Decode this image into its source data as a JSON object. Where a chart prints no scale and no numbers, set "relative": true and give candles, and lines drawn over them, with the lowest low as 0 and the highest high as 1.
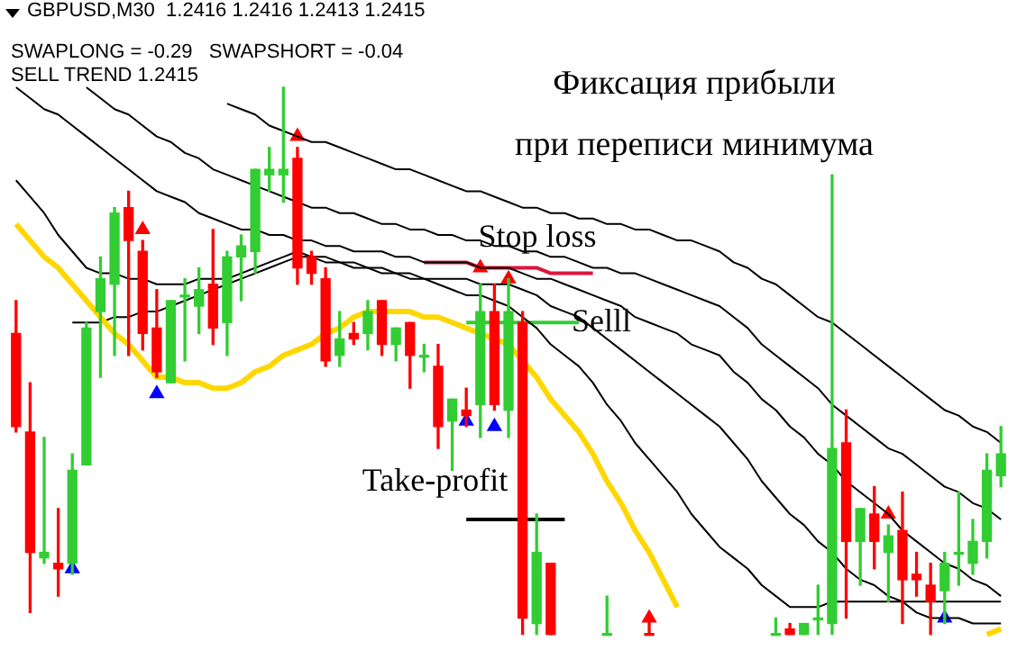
{
  "chart_data": {
    "type": "candlestick",
    "title": "Фиксация прибыли",
    "subtitle": "при переписи минимума",
    "annotations": [
      "GBPUSD,M30  1.2416 1.2416 1.2413 1.2415",
      "SWAPLONG = -0.29   SWAPSHORT = -0.04",
      "SELL TREND 1.2415"
    ],
    "relative": true,
    "tick_labels": false,
    "legend": false,
    "categories": [
      null,
      null,
      null,
      null,
      null,
      null,
      null,
      null,
      null,
      null,
      null,
      null,
      null,
      null,
      null,
      null,
      null,
      null,
      null,
      null,
      null,
      null,
      null,
      null,
      null,
      null,
      null,
      null,
      null,
      null,
      null,
      null,
      null,
      null,
      null,
      null,
      null,
      null,
      null,
      null,
      null,
      null,
      null,
      null,
      null,
      null,
      null,
      null,
      null,
      null,
      null,
      null,
      null,
      null,
      null,
      null,
      null,
      null,
      null,
      null,
      null,
      null,
      null,
      null,
      null,
      null,
      null,
      null,
      null,
      null,
      null
    ],
    "ohlc": [
      [
        0.55,
        0.61,
        0.37,
        0.38
      ],
      [
        0.37,
        0.46,
        0.04,
        0.15
      ],
      [
        0.14,
        0.36,
        0.13,
        0.15
      ],
      [
        0.13,
        0.23,
        0.07,
        0.12
      ],
      [
        0.13,
        0.33,
        0.11,
        0.3
      ],
      [
        0.31,
        0.57,
        0.31,
        0.56
      ],
      [
        0.59,
        0.69,
        0.47,
        0.65
      ],
      [
        0.64,
        0.78,
        0.51,
        0.77
      ],
      [
        0.78,
        0.81,
        0.51,
        0.72
      ],
      [
        0.7,
        0.72,
        0.52,
        0.55
      ],
      [
        0.56,
        0.63,
        0.47,
        0.48
      ],
      [
        0.46,
        0.61,
        0.46,
        0.61
      ],
      [
        0.62,
        0.65,
        0.5,
        0.62
      ],
      [
        0.6,
        0.67,
        0.55,
        0.63
      ],
      [
        0.64,
        0.74,
        0.53,
        0.56
      ],
      [
        0.57,
        0.7,
        0.51,
        0.69
      ],
      [
        0.69,
        0.73,
        0.61,
        0.71
      ],
      [
        0.7,
        0.85,
        0.66,
        0.85
      ],
      [
        0.84,
        0.89,
        0.81,
        0.85
      ],
      [
        0.84,
        1,
        0.79,
        0.85
      ],
      [
        0.87,
        0.89,
        0.64,
        0.67
      ],
      [
        0.69,
        0.7,
        0.64,
        0.66
      ],
      [
        0.65,
        0.67,
        0.49,
        0.5
      ],
      [
        0.51,
        0.59,
        0.49,
        0.54
      ],
      [
        0.55,
        0.57,
        0.53,
        0.54
      ],
      [
        0.55,
        0.61,
        0.52,
        0.59
      ],
      [
        0.61,
        0.61,
        0.51,
        0.53
      ],
      [
        0.53,
        0.56,
        0.5,
        0.56
      ],
      [
        0.57,
        0.57,
        0.45,
        0.51
      ],
      [
        0.51,
        0.53,
        0.48,
        0.51
      ],
      [
        0.49,
        0.53,
        0.34,
        0.38
      ],
      [
        0.39,
        0.43,
        0.3,
        0.43
      ],
      [
        0.41,
        0.45,
        0.38,
        0.4
      ],
      [
        0.42,
        0.64,
        0.36,
        0.59
      ],
      [
        0.59,
        0.64,
        0.41,
        0.42
      ],
      [
        0.41,
        0.65,
        0.36,
        0.59
      ],
      [
        0.57,
        0.59,
        0,
        0.03
      ],
      [
        0.02,
        0.22,
        0,
        0.15
      ],
      [
        0.13,
        0.13,
        0,
        0
      ],
      null,
      null,
      null,
      [
        0,
        0.07,
        0,
        0
      ],
      null,
      null,
      [
        0,
        0.04,
        0,
        0
      ],
      null,
      null,
      null,
      null,
      null,
      null,
      null,
      null,
      [
        0,
        0.03,
        0,
        0
      ],
      [
        0.01,
        0.02,
        0,
        0
      ],
      [
        0,
        0.02,
        0,
        0.02
      ],
      [
        0.03,
        0.09,
        0,
        0.03
      ],
      [
        0.02,
        0.84,
        0,
        0.34
      ],
      [
        0.35,
        0.41,
        0.03,
        0.17
      ],
      [
        0.17,
        0.23,
        0.09,
        0.23
      ],
      [
        0.22,
        0.27,
        0.12,
        0.17
      ],
      [
        0.15,
        0.2,
        0.06,
        0.18
      ],
      [
        0.19,
        0.26,
        0.02,
        0.1
      ],
      [
        0.11,
        0.15,
        0.07,
        0.1
      ],
      [
        0.09,
        0.13,
        0,
        0.06
      ],
      [
        0.08,
        0.15,
        0.02,
        0.13
      ],
      [
        0.15,
        0.26,
        0.09,
        0.15
      ],
      [
        0.13,
        0.21,
        0.11,
        0.17
      ],
      [
        0.17,
        0.33,
        0.14,
        0.3
      ],
      [
        0.29,
        0.38,
        0.27,
        0.33
      ]
    ],
    "colors": [
      "#ff0000",
      "#ff0000",
      "#32cd32",
      "#ff0000",
      "#32cd32",
      "#32cd32",
      "#32cd32",
      "#32cd32",
      "#ff0000",
      "#ff0000",
      "#ff0000",
      "#32cd32",
      "#32cd32",
      "#32cd32",
      "#ff0000",
      "#32cd32",
      "#32cd32",
      "#32cd32",
      "#32cd32",
      "#32cd32",
      "#ff0000",
      "#ff0000",
      "#ff0000",
      "#32cd32",
      "#ff0000",
      "#32cd32",
      "#ff0000",
      "#32cd32",
      "#ff0000",
      "#32cd32",
      "#ff0000",
      "#32cd32",
      "#ff0000",
      "#32cd32",
      "#ff0000",
      "#32cd32",
      "#ff0000",
      "#32cd32",
      "#ff0000",
      null,
      null,
      null,
      "#32cd32",
      null,
      null,
      "#ff0000",
      null,
      null,
      null,
      null,
      null,
      null,
      null,
      null,
      "#32cd32",
      "#ff0000",
      "#32cd32",
      "#32cd32",
      "#32cd32",
      "#ff0000",
      "#32cd32",
      "#ff0000",
      "#32cd32",
      "#ff0000",
      "#ff0000",
      "#ff0000",
      "#32cd32",
      "#32cd32",
      "#32cd32",
      "#32cd32",
      "#32cd32"
    ],
    "series": [
      {
        "type": "line",
        "color": "#ffd700",
        "values": [
          0.75,
          0.72,
          0.69,
          0.67,
          0.64,
          0.61,
          0.58,
          0.55,
          0.53,
          0.5,
          0.47,
          0.47,
          0.46,
          0.46,
          0.45,
          0.45,
          0.46,
          0.48,
          0.49,
          0.51,
          0.52,
          0.53,
          0.55,
          0.56,
          0.58,
          0.59,
          0.59,
          0.59,
          0.59,
          0.58,
          0.58,
          0.57,
          0.56,
          0.55,
          0.54,
          0.53,
          0.5,
          0.47,
          0.43,
          0.4,
          0.37,
          0.33,
          0.28,
          0.24,
          0.19,
          0.15,
          0.1,
          0.05,
          null,
          null,
          null,
          null,
          null,
          null,
          null,
          null,
          null,
          null,
          null,
          null,
          null,
          null,
          null,
          null,
          null,
          null,
          null,
          null,
          null,
          0,
          0.01
        ]
      },
      {
        "type": "line",
        "color": "#000000",
        "values": [
          null,
          null,
          null,
          null,
          null,
          null,
          null,
          null,
          null,
          null,
          null,
          null,
          null,
          null,
          null,
          0.97,
          0.96,
          0.95,
          0.93,
          0.92,
          0.91,
          0.9,
          0.9,
          0.89,
          0.88,
          0.87,
          0.86,
          0.85,
          0.85,
          0.84,
          0.83,
          0.82,
          0.81,
          0.81,
          0.8,
          0.79,
          0.78,
          0.78,
          0.77,
          0.77,
          0.76,
          0.76,
          0.75,
          0.75,
          0.74,
          0.74,
          0.73,
          0.72,
          0.72,
          0.71,
          0.7,
          0.68,
          0.67,
          0.65,
          0.64,
          0.62,
          0.6,
          0.58,
          0.57,
          0.55,
          0.53,
          0.51,
          0.49,
          0.47,
          0.45,
          0.43,
          0.41,
          0.4,
          0.38,
          0.37,
          0.35
        ]
      },
      {
        "type": "line",
        "color": "#000000",
        "values": [
          null,
          null,
          null,
          null,
          null,
          1,
          0.98,
          0.96,
          0.95,
          0.93,
          0.91,
          0.9,
          0.88,
          0.87,
          0.85,
          0.84,
          0.83,
          0.82,
          0.81,
          0.8,
          0.79,
          0.78,
          0.78,
          0.77,
          0.77,
          0.76,
          0.75,
          0.75,
          0.74,
          0.74,
          0.73,
          0.73,
          0.72,
          0.72,
          0.71,
          0.71,
          0.7,
          0.7,
          0.69,
          0.69,
          0.68,
          0.67,
          0.67,
          0.66,
          0.66,
          0.65,
          0.64,
          0.63,
          0.62,
          0.61,
          0.6,
          0.58,
          0.56,
          0.53,
          0.51,
          0.49,
          0.47,
          0.45,
          0.42,
          0.4,
          0.38,
          0.36,
          0.34,
          0.33,
          0.31,
          0.29,
          0.27,
          0.26,
          0.24,
          0.23,
          0.21
        ]
      },
      {
        "type": "line",
        "color": "#000000",
        "values": [
          1,
          0.98,
          0.96,
          0.95,
          0.93,
          0.91,
          0.89,
          0.87,
          0.85,
          0.83,
          0.81,
          0.8,
          0.79,
          0.77,
          0.76,
          0.75,
          0.74,
          0.74,
          0.73,
          0.73,
          0.72,
          0.72,
          0.71,
          0.71,
          0.7,
          0.7,
          0.7,
          0.69,
          0.69,
          0.68,
          0.68,
          0.68,
          0.68,
          0.67,
          0.67,
          0.67,
          0.66,
          0.65,
          0.65,
          0.64,
          0.63,
          0.62,
          0.61,
          0.6,
          0.58,
          0.57,
          0.56,
          0.55,
          0.53,
          0.52,
          0.51,
          0.48,
          0.46,
          0.43,
          0.41,
          0.38,
          0.36,
          0.33,
          0.31,
          0.28,
          0.26,
          0.24,
          0.22,
          0.19,
          0.17,
          0.15,
          0.13,
          0.12,
          0.1,
          0.09,
          0.07
        ]
      },
      {
        "type": "line",
        "color": "#000000",
        "values": [
          0.83,
          0.8,
          0.77,
          0.73,
          0.7,
          0.67,
          0.66,
          0.66,
          0.65,
          0.65,
          0.64,
          0.64,
          0.64,
          0.65,
          0.65,
          0.65,
          0.66,
          0.67,
          0.68,
          0.69,
          0.7,
          0.69,
          0.69,
          0.68,
          0.68,
          0.67,
          0.67,
          0.66,
          0.66,
          0.65,
          0.65,
          0.65,
          0.65,
          0.64,
          0.64,
          0.64,
          0.63,
          0.62,
          0.6,
          0.59,
          0.58,
          0.56,
          0.54,
          0.52,
          0.5,
          0.48,
          0.46,
          0.44,
          0.42,
          0.4,
          0.38,
          0.35,
          0.32,
          0.28,
          0.25,
          0.22,
          0.2,
          0.17,
          0.15,
          0.12,
          0.1,
          0.09,
          0.07,
          0.06,
          0.04,
          0.03,
          0.03,
          0.03,
          0.02,
          0.02,
          0.02
        ]
      },
      {
        "type": "line",
        "color": "#000000",
        "values": [
          null,
          null,
          null,
          null,
          0.57,
          0.57,
          0.57,
          0.58,
          0.58,
          0.59,
          0.59,
          0.6,
          0.61,
          0.62,
          0.63,
          0.64,
          0.65,
          0.66,
          0.67,
          0.68,
          0.69,
          0.69,
          0.68,
          0.68,
          0.67,
          0.67,
          0.66,
          0.66,
          0.65,
          0.65,
          0.64,
          0.63,
          0.62,
          0.62,
          0.61,
          0.6,
          0.58,
          0.56,
          0.53,
          0.51,
          0.49,
          0.46,
          0.42,
          0.39,
          0.35,
          0.32,
          0.29,
          0.26,
          0.22,
          0.19,
          0.16,
          0.14,
          0.12,
          0.09,
          0.07,
          0.05,
          0.05,
          0.05,
          0.06,
          0.06,
          0.06,
          0.06,
          0.06,
          0.06,
          0.06,
          0.06,
          0.06,
          0.06,
          0.06,
          0.06,
          0.06
        ]
      },
      {
        "type": "scatter",
        "color": "#0000ff",
        "marker": "triangle",
        "values": [
          null,
          null,
          null,
          null,
          0.12,
          null,
          null,
          null,
          null,
          null,
          0.44,
          null,
          null,
          null,
          null,
          null,
          null,
          null,
          null,
          null,
          null,
          null,
          null,
          null,
          null,
          null,
          null,
          null,
          null,
          null,
          null,
          null,
          0.39,
          null,
          0.38,
          null,
          null,
          null,
          null,
          null,
          null,
          null,
          null,
          null,
          null,
          null,
          null,
          null,
          null,
          null,
          null,
          null,
          null,
          null,
          null,
          null,
          null,
          null,
          null,
          null,
          null,
          null,
          null,
          null,
          null,
          null,
          0.03,
          null,
          null,
          null,
          null
        ]
      },
      {
        "type": "scatter",
        "color": "#ff0000",
        "marker": "triangle",
        "values": [
          null,
          null,
          null,
          null,
          null,
          null,
          null,
          null,
          null,
          0.74,
          null,
          null,
          null,
          null,
          null,
          null,
          null,
          null,
          null,
          null,
          0.91,
          null,
          null,
          null,
          null,
          null,
          null,
          null,
          null,
          null,
          null,
          null,
          null,
          0.67,
          null,
          0.65,
          null,
          null,
          null,
          null,
          null,
          null,
          null,
          null,
          null,
          0.03,
          null,
          null,
          null,
          null,
          null,
          null,
          null,
          null,
          null,
          null,
          null,
          null,
          null,
          null,
          null,
          null,
          0.22,
          null,
          null,
          null,
          null,
          null,
          null,
          null,
          null
        ]
      },
      {
        "type": "line",
        "name": "Stop loss",
        "color": "#dc143c",
        "values": [
          null,
          null,
          null,
          null,
          null,
          null,
          null,
          null,
          null,
          null,
          null,
          null,
          null,
          null,
          null,
          null,
          null,
          null,
          null,
          null,
          null,
          null,
          null,
          null,
          null,
          null,
          null,
          null,
          null,
          0.68,
          0.68,
          0.68,
          0.68,
          0.67,
          0.67,
          0.67,
          0.67,
          0.67,
          0.66,
          0.66,
          0.66,
          0.66,
          null,
          null,
          null,
          null,
          null,
          null,
          null,
          null,
          null,
          null,
          null,
          null,
          null,
          null,
          null,
          null,
          null,
          null,
          null,
          null,
          null,
          null,
          null,
          null,
          null,
          null,
          null,
          null,
          null
        ]
      },
      {
        "type": "line",
        "name": "Selll",
        "color": "#32cd32",
        "values": [
          null,
          null,
          null,
          null,
          null,
          null,
          null,
          null,
          null,
          null,
          null,
          null,
          null,
          null,
          null,
          null,
          null,
          null,
          null,
          null,
          null,
          null,
          null,
          null,
          null,
          null,
          null,
          null,
          null,
          null,
          null,
          null,
          0.57,
          0.57,
          0.57,
          0.57,
          0.57,
          0.57,
          0.57,
          0.57,
          0.57,
          null,
          null,
          null,
          null,
          null,
          null,
          null,
          null,
          null,
          null,
          null,
          null,
          null,
          null,
          null,
          null,
          null,
          null,
          null,
          null,
          null,
          null,
          null,
          null,
          null,
          null,
          null,
          null,
          null,
          null
        ]
      },
      {
        "type": "line",
        "name": "Take-profit",
        "color": "#000000",
        "values": [
          null,
          null,
          null,
          null,
          null,
          null,
          null,
          null,
          null,
          null,
          null,
          null,
          null,
          null,
          null,
          null,
          null,
          null,
          null,
          null,
          null,
          null,
          null,
          null,
          null,
          null,
          null,
          null,
          null,
          null,
          null,
          null,
          0.21,
          0.21,
          0.21,
          0.21,
          0.21,
          0.21,
          0.21,
          0.21,
          null,
          null,
          null,
          null,
          null,
          null,
          null,
          null,
          null,
          null,
          null,
          null,
          null,
          null,
          null,
          null,
          null,
          null,
          null,
          null,
          null,
          null,
          null,
          null,
          null,
          null,
          null,
          null,
          null,
          null,
          null
        ]
      }
    ]
  }
}
